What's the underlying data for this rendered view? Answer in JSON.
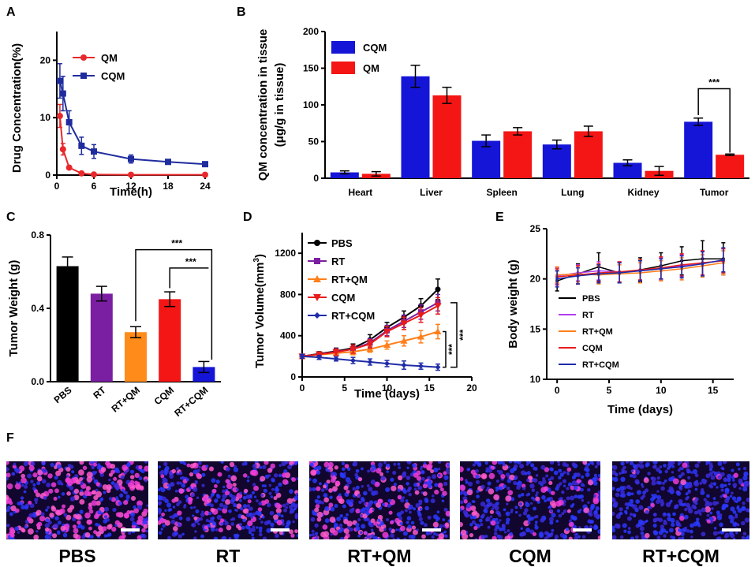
{
  "panel_labels": [
    "A",
    "B",
    "C",
    "D",
    "E",
    "F"
  ],
  "chart_data": [
    {
      "panel": "A",
      "type": "line",
      "xlabel": "Time(h)",
      "ylabel": "Drug Concentration(%)",
      "xlim": [
        0,
        24
      ],
      "ylim": [
        0,
        25
      ],
      "xticks": [
        0,
        6,
        12,
        18,
        24
      ],
      "yticks": [
        0,
        10,
        20
      ],
      "legend_position": "top-left",
      "series": [
        {
          "name": "QM",
          "color": "#e8282b",
          "marker": "circle",
          "x": [
            0.5,
            1,
            2,
            4,
            6,
            12,
            24
          ],
          "y": [
            10.3,
            4.5,
            1.3,
            0.3,
            0.1,
            0.05,
            0.05
          ],
          "err": [
            2,
            1,
            0.3,
            0.1,
            0.1,
            0.05,
            0.05
          ]
        },
        {
          "name": "CQM",
          "color": "#1f2c9e",
          "marker": "square",
          "x": [
            0.5,
            1,
            2,
            4,
            6,
            12,
            18,
            24
          ],
          "y": [
            16.4,
            14.2,
            9.2,
            5.1,
            4.1,
            2.8,
            2.3,
            1.9
          ],
          "err": [
            3,
            3,
            2,
            1.5,
            1.2,
            0.7,
            0.4,
            0.3
          ]
        }
      ]
    },
    {
      "panel": "B",
      "type": "bar",
      "xlabel": "",
      "ylabel": "QM concentration in tissue",
      "ylabel2": "(μg/g in tissue)",
      "ylim": [
        0,
        200
      ],
      "yticks": [
        0,
        50,
        100,
        150,
        200
      ],
      "categories": [
        "Heart",
        "Liver",
        "Spleen",
        "Lung",
        "Kidney",
        "Tumor"
      ],
      "legend_position": "top-left",
      "series": [
        {
          "name": "CQM",
          "color": "#1515d8",
          "values": [
            8,
            139,
            51,
            46,
            21,
            77
          ],
          "err": [
            2,
            15,
            8,
            6,
            4,
            5
          ]
        },
        {
          "name": "QM",
          "color": "#f41515",
          "values": [
            6,
            113,
            64,
            64,
            10,
            32
          ],
          "err": [
            3,
            11,
            5,
            7,
            6,
            1
          ]
        }
      ],
      "significance": [
        {
          "label": "***",
          "category": "Tumor"
        }
      ]
    },
    {
      "panel": "C",
      "type": "bar",
      "ylabel": "Tumor Weight (g)",
      "ylim": [
        0,
        0.8
      ],
      "yticks": [
        0.0,
        0.4,
        0.8
      ],
      "ytick_labels": [
        "0.0",
        "0.4",
        "0.8"
      ],
      "categories": [
        "PBS",
        "RT",
        "RT+QM",
        "CQM",
        "RT+CQM"
      ],
      "values": [
        0.63,
        0.48,
        0.27,
        0.45,
        0.08
      ],
      "err": [
        0.05,
        0.04,
        0.03,
        0.04,
        0.03
      ],
      "colors": [
        "#000000",
        "#7b1fa2",
        "#ff8c1a",
        "#f41515",
        "#1515d8"
      ],
      "significance": [
        {
          "label": "***",
          "from": "RT+QM",
          "to": "RT+CQM"
        },
        {
          "label": "***",
          "from": "CQM",
          "to": "RT+CQM"
        }
      ]
    },
    {
      "panel": "D",
      "type": "line",
      "xlabel": "Time (days)",
      "ylabel": "Tumor Volume(mm",
      "ylabel_sup": "3",
      "ylabel_close": ")",
      "xlim": [
        0,
        20
      ],
      "ylim": [
        0,
        1400
      ],
      "xticks": [
        0,
        5,
        10,
        15,
        20
      ],
      "yticks": [
        0,
        400,
        800,
        1200
      ],
      "legend_position": "top-left",
      "x": [
        0,
        2,
        4,
        6,
        8,
        10,
        12,
        14,
        16
      ],
      "series": [
        {
          "name": "PBS",
          "color": "#000000",
          "marker": "circle",
          "values": [
            200,
            225,
            250,
            280,
            360,
            480,
            580,
            690,
            850
          ],
          "err": [
            20,
            20,
            30,
            40,
            50,
            50,
            60,
            70,
            100
          ]
        },
        {
          "name": "RT",
          "color": "#7b1fa2",
          "marker": "square",
          "values": [
            200,
            220,
            245,
            270,
            330,
            450,
            540,
            630,
            720
          ],
          "err": [
            20,
            20,
            30,
            40,
            40,
            50,
            60,
            70,
            80
          ]
        },
        {
          "name": "RT+QM",
          "color": "#ff7f1a",
          "marker": "triangle",
          "values": [
            200,
            215,
            230,
            245,
            270,
            310,
            350,
            390,
            440
          ],
          "err": [
            20,
            20,
            20,
            30,
            30,
            40,
            50,
            60,
            70
          ]
        },
        {
          "name": "CQM",
          "color": "#e81c1c",
          "marker": "triangle-down",
          "values": [
            200,
            220,
            240,
            270,
            320,
            440,
            520,
            600,
            690
          ],
          "err": [
            20,
            20,
            30,
            40,
            40,
            50,
            60,
            70,
            80
          ]
        },
        {
          "name": "RT+CQM",
          "color": "#1f2ca8",
          "marker": "diamond",
          "values": [
            200,
            190,
            175,
            160,
            145,
            130,
            115,
            105,
            95
          ],
          "err": [
            20,
            20,
            20,
            30,
            30,
            30,
            40,
            30,
            30
          ]
        }
      ],
      "significance": [
        {
          "label": "***"
        },
        {
          "label": "***"
        }
      ]
    },
    {
      "panel": "E",
      "type": "line",
      "xlabel": "Time (days)",
      "ylabel": "Body weight (g)",
      "xlim": [
        -1,
        17
      ],
      "ylim": [
        10,
        25
      ],
      "xticks": [
        0,
        5,
        10,
        15
      ],
      "yticks": [
        10,
        15,
        20,
        25
      ],
      "legend_position": "center-left",
      "x": [
        0,
        2,
        4,
        6,
        8,
        10,
        12,
        14,
        16
      ],
      "series": [
        {
          "name": "PBS",
          "color": "#000000",
          "values": [
            19.8,
            20.5,
            21.2,
            20.6,
            20.9,
            21.3,
            21.8,
            22.0,
            22.0
          ],
          "err": [
            1.0,
            1.0,
            1.4,
            1.0,
            1.2,
            1.3,
            1.4,
            1.8,
            1.6
          ]
        },
        {
          "name": "RT",
          "color": "#b23cf0",
          "values": [
            20.3,
            20.6,
            20.8,
            20.7,
            20.8,
            21.0,
            21.3,
            21.6,
            21.8
          ],
          "err": [
            0.8,
            0.8,
            0.9,
            1.0,
            1.0,
            1.1,
            1.1,
            1.2,
            1.2
          ]
        },
        {
          "name": "RT+QM",
          "color": "#ff7f1a",
          "values": [
            20.4,
            20.5,
            20.4,
            20.5,
            20.6,
            20.8,
            21.0,
            21.3,
            21.6
          ],
          "err": [
            0.8,
            0.8,
            0.9,
            0.9,
            1.0,
            1.0,
            1.1,
            1.1,
            1.2
          ]
        },
        {
          "name": "CQM",
          "color": "#e81c1c",
          "values": [
            20.2,
            20.4,
            20.6,
            20.7,
            20.9,
            21.1,
            21.4,
            21.6,
            21.8
          ],
          "err": [
            0.8,
            0.9,
            0.9,
            1.0,
            1.0,
            1.1,
            1.1,
            1.2,
            1.2
          ]
        },
        {
          "name": "RT+CQM",
          "color": "#1f2ca8",
          "values": [
            20.0,
            20.3,
            20.5,
            20.6,
            20.8,
            21.0,
            21.2,
            21.5,
            21.9
          ],
          "err": [
            0.8,
            0.8,
            0.9,
            1.0,
            1.0,
            1.0,
            1.1,
            1.2,
            1.2
          ]
        }
      ]
    }
  ],
  "micrographs": [
    {
      "label": "PBS",
      "red_density": 0.9
    },
    {
      "label": "RT",
      "red_density": 0.45
    },
    {
      "label": "RT+QM",
      "red_density": 0.65
    },
    {
      "label": "CQM",
      "red_density": 0.3
    },
    {
      "label": "RT+CQM",
      "red_density": 0.08
    }
  ]
}
